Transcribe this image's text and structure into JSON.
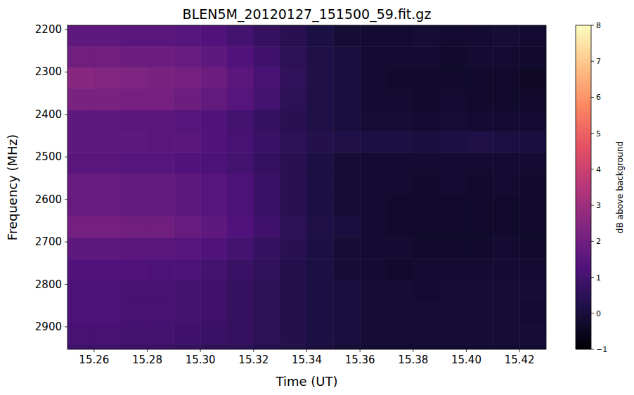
{
  "chart_data": {
    "type": "heatmap",
    "title": "BLEN5M_20120127_151500_59.fit.gz",
    "x_label": "Time (UT)",
    "y_label": "Frequency (MHz)",
    "color": "magma",
    "x": [
      15.255,
      15.265,
      15.275,
      15.285,
      15.295,
      15.305,
      15.315,
      15.325,
      15.335,
      15.345,
      15.355,
      15.365,
      15.375,
      15.385,
      15.395,
      15.405,
      15.415,
      15.425
    ],
    "y": [
      2215,
      2265,
      2315,
      2365,
      2415,
      2465,
      2515,
      2565,
      2615,
      2665,
      2715,
      2765,
      2815,
      2865,
      2915,
      2965
    ],
    "values": [
      [
        1.6,
        1.6,
        1.5,
        1.5,
        1.4,
        1.3,
        1.0,
        0.7,
        0.4,
        0.1,
        -0.1,
        -0.2,
        -0.2,
        -0.1,
        -0.2,
        -0.2,
        -0.1,
        -0.2
      ],
      [
        2.0,
        2.0,
        1.9,
        1.9,
        1.8,
        1.6,
        1.3,
        0.9,
        0.5,
        0.2,
        0.0,
        -0.2,
        -0.2,
        -0.2,
        -0.3,
        -0.2,
        -0.2,
        -0.3
      ],
      [
        2.5,
        2.4,
        2.3,
        2.2,
        2.1,
        1.9,
        1.5,
        1.1,
        0.6,
        0.2,
        0.0,
        -0.2,
        -0.3,
        -0.3,
        -0.3,
        -0.3,
        -0.3,
        -0.4
      ],
      [
        2.2,
        2.2,
        2.1,
        2.1,
        1.9,
        1.7,
        1.4,
        1.0,
        0.5,
        0.2,
        0.0,
        -0.2,
        -0.2,
        -0.3,
        -0.2,
        -0.3,
        -0.3,
        -0.3
      ],
      [
        1.6,
        1.6,
        1.5,
        1.5,
        1.4,
        1.3,
        1.0,
        0.7,
        0.4,
        0.2,
        0.0,
        -0.1,
        -0.1,
        -0.2,
        -0.1,
        -0.2,
        -0.2,
        -0.2
      ],
      [
        1.6,
        1.6,
        1.6,
        1.5,
        1.5,
        1.3,
        1.1,
        0.8,
        0.5,
        0.3,
        0.2,
        0.1,
        0.1,
        0.0,
        0.1,
        0.2,
        0.1,
        0.0
      ],
      [
        1.5,
        1.5,
        1.4,
        1.4,
        1.3,
        1.2,
        1.0,
        0.7,
        0.4,
        0.1,
        -0.1,
        -0.2,
        -0.2,
        -0.2,
        -0.2,
        -0.2,
        -0.2,
        -0.2
      ],
      [
        1.8,
        1.8,
        1.7,
        1.7,
        1.6,
        1.4,
        1.2,
        0.8,
        0.4,
        0.1,
        -0.1,
        -0.2,
        -0.2,
        -0.3,
        -0.2,
        -0.3,
        -0.2,
        -0.3
      ],
      [
        1.8,
        1.8,
        1.7,
        1.7,
        1.6,
        1.4,
        1.2,
        0.8,
        0.4,
        0.1,
        -0.1,
        -0.2,
        -0.3,
        -0.3,
        -0.3,
        -0.3,
        -0.3,
        -0.3
      ],
      [
        2.1,
        2.1,
        2.0,
        2.0,
        1.8,
        1.6,
        1.3,
        0.9,
        0.5,
        0.2,
        0.0,
        -0.2,
        -0.3,
        -0.3,
        -0.3,
        -0.3,
        -0.3,
        -0.3
      ],
      [
        1.6,
        1.6,
        1.5,
        1.5,
        1.4,
        1.3,
        1.0,
        0.7,
        0.4,
        0.1,
        -0.1,
        -0.2,
        -0.2,
        -0.3,
        -0.3,
        -0.3,
        -0.2,
        -0.3
      ],
      [
        1.3,
        1.3,
        1.3,
        1.2,
        1.2,
        1.0,
        0.8,
        0.6,
        0.3,
        0.1,
        -0.1,
        -0.2,
        -0.3,
        -0.2,
        -0.2,
        -0.2,
        -0.2,
        -0.2
      ],
      [
        1.2,
        1.2,
        1.1,
        1.1,
        1.0,
        0.9,
        0.7,
        0.5,
        0.3,
        0.1,
        0.0,
        -0.1,
        -0.1,
        -0.2,
        -0.1,
        -0.1,
        -0.1,
        -0.1
      ],
      [
        1.2,
        1.2,
        1.1,
        1.1,
        1.0,
        0.9,
        0.7,
        0.5,
        0.3,
        0.1,
        0.0,
        -0.1,
        -0.1,
        -0.1,
        -0.1,
        -0.1,
        -0.1,
        -0.2
      ],
      [
        1.1,
        1.1,
        1.0,
        1.0,
        0.9,
        0.8,
        0.7,
        0.5,
        0.3,
        0.1,
        0.0,
        -0.1,
        -0.1,
        -0.1,
        -0.1,
        -0.1,
        -0.1,
        -0.1
      ],
      [
        0.9,
        0.9,
        0.8,
        0.8,
        0.7,
        0.6,
        0.5,
        0.3,
        0.2,
        0.0,
        -0.1,
        -0.2,
        -0.2,
        -0.2,
        -0.2,
        -0.2,
        -0.2,
        -0.2
      ]
    ],
    "xlim": [
      15.25,
      15.43
    ],
    "ylim": [
      2953,
      2190
    ],
    "xticks": [
      15.26,
      15.28,
      15.3,
      15.32,
      15.34,
      15.36,
      15.38,
      15.4,
      15.42
    ],
    "yticks": [
      2200,
      2300,
      2400,
      2500,
      2600,
      2700,
      2800,
      2900
    ],
    "colorbar": {
      "label": "dB above background",
      "range": [
        -1,
        8
      ],
      "ticks": [
        -1,
        0,
        1,
        2,
        3,
        4,
        5,
        6,
        7,
        8
      ]
    }
  }
}
